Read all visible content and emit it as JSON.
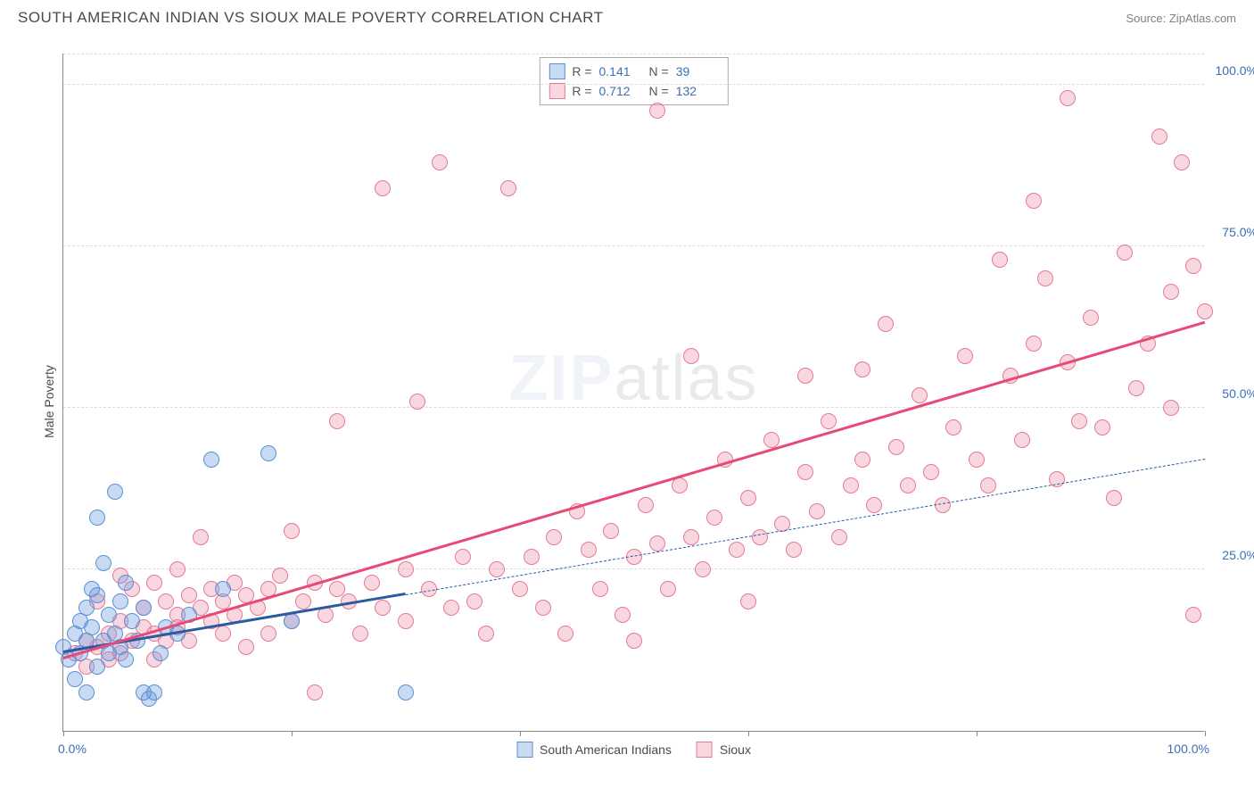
{
  "header": {
    "title": "SOUTH AMERICAN INDIAN VS SIOUX MALE POVERTY CORRELATION CHART",
    "source": "Source: ZipAtlas.com"
  },
  "chart": {
    "type": "scatter",
    "ylabel": "Male Poverty",
    "xlim": [
      0,
      100
    ],
    "ylim": [
      0,
      105
    ],
    "xtick_positions": [
      0,
      20,
      40,
      60,
      80,
      100
    ],
    "xtick_labels": {
      "0": "0.0%",
      "100": "100.0%"
    },
    "ytick_positions": [
      25,
      50,
      75,
      100
    ],
    "ytick_labels": {
      "25": "25.0%",
      "50": "50.0%",
      "75": "75.0%",
      "100": "100.0%"
    },
    "grid_color": "#dcdcdc",
    "axis_color": "#888888",
    "background_color": "#ffffff",
    "tick_label_color": "#3b6fb6",
    "axis_label_color": "#4a4a4a",
    "marker_radius": 9,
    "marker_stroke_width": 1.5,
    "watermark": "ZIPatlas",
    "series": [
      {
        "name": "South American Indians",
        "fill_color": "rgba(99,153,222,0.35)",
        "stroke_color": "#5a8fd6",
        "trend": {
          "x1": 0,
          "y1": 12,
          "x2": 30,
          "y2": 21,
          "width": 3,
          "dash": "solid",
          "color": "#2a5aa0",
          "ext_x2": 100,
          "ext_y2": 42,
          "ext_dash": "dashed",
          "ext_width": 1.5
        },
        "stats": {
          "R": "0.141",
          "N": "39"
        },
        "points": [
          [
            0,
            13
          ],
          [
            0.5,
            11
          ],
          [
            1,
            15
          ],
          [
            1,
            8
          ],
          [
            1.5,
            17
          ],
          [
            1.5,
            12
          ],
          [
            2,
            14
          ],
          [
            2,
            19
          ],
          [
            2,
            6
          ],
          [
            2.5,
            16
          ],
          [
            2.5,
            22
          ],
          [
            3,
            21
          ],
          [
            3,
            10
          ],
          [
            3,
            33
          ],
          [
            3.5,
            14
          ],
          [
            3.5,
            26
          ],
          [
            4,
            18
          ],
          [
            4,
            12
          ],
          [
            4.5,
            37
          ],
          [
            4.5,
            15
          ],
          [
            5,
            20
          ],
          [
            5,
            13
          ],
          [
            5.5,
            11
          ],
          [
            5.5,
            23
          ],
          [
            6,
            17
          ],
          [
            6.5,
            14
          ],
          [
            7,
            6
          ],
          [
            7,
            19
          ],
          [
            7.5,
            5
          ],
          [
            8,
            6
          ],
          [
            8.5,
            12
          ],
          [
            9,
            16
          ],
          [
            10,
            15
          ],
          [
            11,
            18
          ],
          [
            13,
            42
          ],
          [
            14,
            22
          ],
          [
            18,
            43
          ],
          [
            20,
            17
          ],
          [
            30,
            6
          ]
        ]
      },
      {
        "name": "Sioux",
        "fill_color": "rgba(239,140,165,0.35)",
        "stroke_color": "#e67a94",
        "trend": {
          "x1": 0,
          "y1": 11,
          "x2": 100,
          "y2": 63,
          "width": 3,
          "dash": "solid",
          "color": "#e84a75"
        },
        "stats": {
          "R": "0.712",
          "N": "132"
        },
        "points": [
          [
            1,
            12
          ],
          [
            2,
            14
          ],
          [
            2,
            10
          ],
          [
            3,
            13
          ],
          [
            3,
            20
          ],
          [
            4,
            15
          ],
          [
            4,
            11
          ],
          [
            5,
            17
          ],
          [
            5,
            24
          ],
          [
            5,
            12
          ],
          [
            6,
            14
          ],
          [
            6,
            22
          ],
          [
            7,
            16
          ],
          [
            7,
            19
          ],
          [
            8,
            15
          ],
          [
            8,
            23
          ],
          [
            8,
            11
          ],
          [
            9,
            20
          ],
          [
            9,
            14
          ],
          [
            10,
            18
          ],
          [
            10,
            25
          ],
          [
            10,
            16
          ],
          [
            11,
            21
          ],
          [
            11,
            14
          ],
          [
            12,
            19
          ],
          [
            12,
            30
          ],
          [
            13,
            17
          ],
          [
            13,
            22
          ],
          [
            14,
            20
          ],
          [
            14,
            15
          ],
          [
            15,
            23
          ],
          [
            15,
            18
          ],
          [
            16,
            21
          ],
          [
            16,
            13
          ],
          [
            17,
            19
          ],
          [
            18,
            22
          ],
          [
            18,
            15
          ],
          [
            19,
            24
          ],
          [
            20,
            17
          ],
          [
            20,
            31
          ],
          [
            21,
            20
          ],
          [
            22,
            23
          ],
          [
            22,
            6
          ],
          [
            23,
            18
          ],
          [
            24,
            22
          ],
          [
            24,
            48
          ],
          [
            25,
            20
          ],
          [
            26,
            15
          ],
          [
            27,
            23
          ],
          [
            28,
            19
          ],
          [
            28,
            84
          ],
          [
            30,
            25
          ],
          [
            30,
            17
          ],
          [
            31,
            51
          ],
          [
            32,
            22
          ],
          [
            33,
            88
          ],
          [
            34,
            19
          ],
          [
            35,
            27
          ],
          [
            36,
            20
          ],
          [
            37,
            15
          ],
          [
            38,
            25
          ],
          [
            39,
            84
          ],
          [
            40,
            22
          ],
          [
            41,
            27
          ],
          [
            42,
            19
          ],
          [
            43,
            30
          ],
          [
            44,
            15
          ],
          [
            45,
            34
          ],
          [
            46,
            28
          ],
          [
            47,
            22
          ],
          [
            48,
            31
          ],
          [
            49,
            18
          ],
          [
            50,
            27
          ],
          [
            50,
            14
          ],
          [
            51,
            35
          ],
          [
            52,
            29
          ],
          [
            52,
            96
          ],
          [
            53,
            22
          ],
          [
            54,
            38
          ],
          [
            55,
            30
          ],
          [
            55,
            58
          ],
          [
            56,
            25
          ],
          [
            57,
            33
          ],
          [
            58,
            42
          ],
          [
            59,
            28
          ],
          [
            60,
            36
          ],
          [
            60,
            20
          ],
          [
            61,
            30
          ],
          [
            62,
            45
          ],
          [
            63,
            32
          ],
          [
            64,
            28
          ],
          [
            65,
            40
          ],
          [
            65,
            55
          ],
          [
            66,
            34
          ],
          [
            67,
            48
          ],
          [
            68,
            30
          ],
          [
            69,
            38
          ],
          [
            70,
            56
          ],
          [
            70,
            42
          ],
          [
            71,
            35
          ],
          [
            72,
            63
          ],
          [
            73,
            44
          ],
          [
            74,
            38
          ],
          [
            75,
            52
          ],
          [
            76,
            40
          ],
          [
            77,
            35
          ],
          [
            78,
            47
          ],
          [
            79,
            58
          ],
          [
            80,
            42
          ],
          [
            81,
            38
          ],
          [
            82,
            73
          ],
          [
            83,
            55
          ],
          [
            84,
            45
          ],
          [
            85,
            82
          ],
          [
            85,
            60
          ],
          [
            86,
            70
          ],
          [
            87,
            39
          ],
          [
            88,
            98
          ],
          [
            88,
            57
          ],
          [
            89,
            48
          ],
          [
            90,
            64
          ],
          [
            91,
            47
          ],
          [
            92,
            36
          ],
          [
            93,
            74
          ],
          [
            94,
            53
          ],
          [
            95,
            60
          ],
          [
            96,
            92
          ],
          [
            97,
            50
          ],
          [
            97,
            68
          ],
          [
            98,
            88
          ],
          [
            99,
            72
          ],
          [
            99,
            18
          ],
          [
            100,
            65
          ]
        ]
      }
    ],
    "stats_box": {
      "border_color": "#aaaaaa"
    },
    "legend": {
      "swatch_size": 18
    }
  }
}
